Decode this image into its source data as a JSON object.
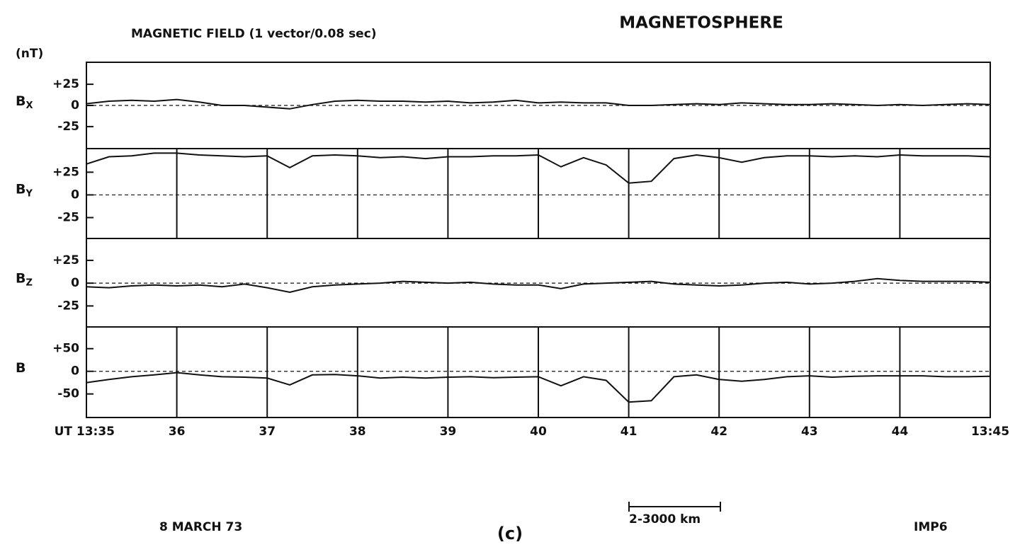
{
  "title": "MAGNETOSPHERE",
  "subtitle": "MAGNETIC FIELD (1 vector/0.08 sec)",
  "unit": "(nT)",
  "date": "8 MARCH 73",
  "panel_label": "(c)",
  "spacecraft": "IMP6",
  "scale_bar": "2-3000 km",
  "x": [
    35,
    35.25,
    35.5,
    35.75,
    36,
    36.25,
    36.5,
    36.75,
    37,
    37.25,
    37.5,
    37.75,
    38,
    38.25,
    38.5,
    38.75,
    39,
    39.25,
    39.5,
    39.75,
    40,
    40.25,
    40.5,
    40.75,
    41,
    41.25,
    41.5,
    41.75,
    42,
    42.25,
    42.5,
    42.75,
    43,
    43.25,
    43.5,
    43.75,
    44,
    44.25,
    44.5,
    44.75,
    45
  ],
  "xlim": [
    35,
    45
  ],
  "xticks": [
    {
      "value": 35,
      "label": "UT 13:35"
    },
    36,
    37,
    38,
    39,
    40,
    41,
    42,
    43,
    44,
    {
      "value": 45,
      "label": "13:45"
    }
  ],
  "chart_data": [
    {
      "type": "line",
      "ylabel": "B",
      "ylabel_sub": "X",
      "grid": false,
      "color": "#111",
      "ylim": [
        -51,
        51
      ],
      "yticks": [
        {
          "value": 25,
          "label": "+25"
        },
        0,
        -25
      ],
      "values": [
        2,
        5,
        6,
        5,
        7,
        4,
        0,
        0,
        -2,
        -4,
        1,
        5,
        6,
        5,
        5,
        4,
        5,
        3,
        4,
        6,
        3,
        4,
        3,
        3,
        0,
        0,
        1,
        2,
        1,
        3,
        2,
        1,
        1,
        2,
        1,
        0,
        1,
        0,
        1,
        2,
        1
      ]
    },
    {
      "type": "line",
      "ylabel": "B",
      "ylabel_sub": "Y",
      "grid": true,
      "color": "#111",
      "ylim": [
        -48,
        51
      ],
      "yticks": [
        {
          "value": 25,
          "label": "+25"
        },
        0,
        -25
      ],
      "values": [
        34,
        42,
        43,
        46,
        46,
        44,
        43,
        42,
        43,
        30,
        43,
        44,
        43,
        41,
        42,
        40,
        42,
        42,
        43,
        43,
        44,
        31,
        41,
        33,
        13,
        15,
        40,
        44,
        41,
        36,
        41,
        43,
        43,
        42,
        43,
        42,
        44,
        43,
        43,
        43,
        42
      ]
    },
    {
      "type": "line",
      "ylabel": "B",
      "ylabel_sub": "Z",
      "grid": false,
      "color": "#111",
      "ylim": [
        -48,
        49
      ],
      "yticks": [
        {
          "value": 25,
          "label": "+25"
        },
        0,
        -25
      ],
      "values": [
        -4,
        -5,
        -3,
        -2,
        -3,
        -2,
        -4,
        -1,
        -5,
        -10,
        -4,
        -2,
        -1,
        0,
        2,
        1,
        0,
        1,
        -1,
        -2,
        -2,
        -6,
        -1,
        0,
        1,
        2,
        -1,
        -2,
        -3,
        -2,
        0,
        1,
        -1,
        0,
        2,
        5,
        3,
        2,
        2,
        2,
        1
      ]
    },
    {
      "type": "line",
      "ylabel": "B",
      "grid": true,
      "color": "#111",
      "ylim": [
        -102,
        98
      ],
      "yticks": [
        {
          "value": 50,
          "label": "+50"
        },
        0,
        -50
      ],
      "values": [
        -25,
        -18,
        -12,
        -8,
        -3,
        -8,
        -12,
        -13,
        -15,
        -30,
        -8,
        -7,
        -10,
        -15,
        -13,
        -15,
        -13,
        -12,
        -14,
        -13,
        -12,
        -32,
        -12,
        -20,
        -68,
        -65,
        -12,
        -8,
        -18,
        -22,
        -18,
        -12,
        -10,
        -13,
        -11,
        -10,
        -10,
        -10,
        -12,
        -12,
        -11
      ]
    }
  ]
}
